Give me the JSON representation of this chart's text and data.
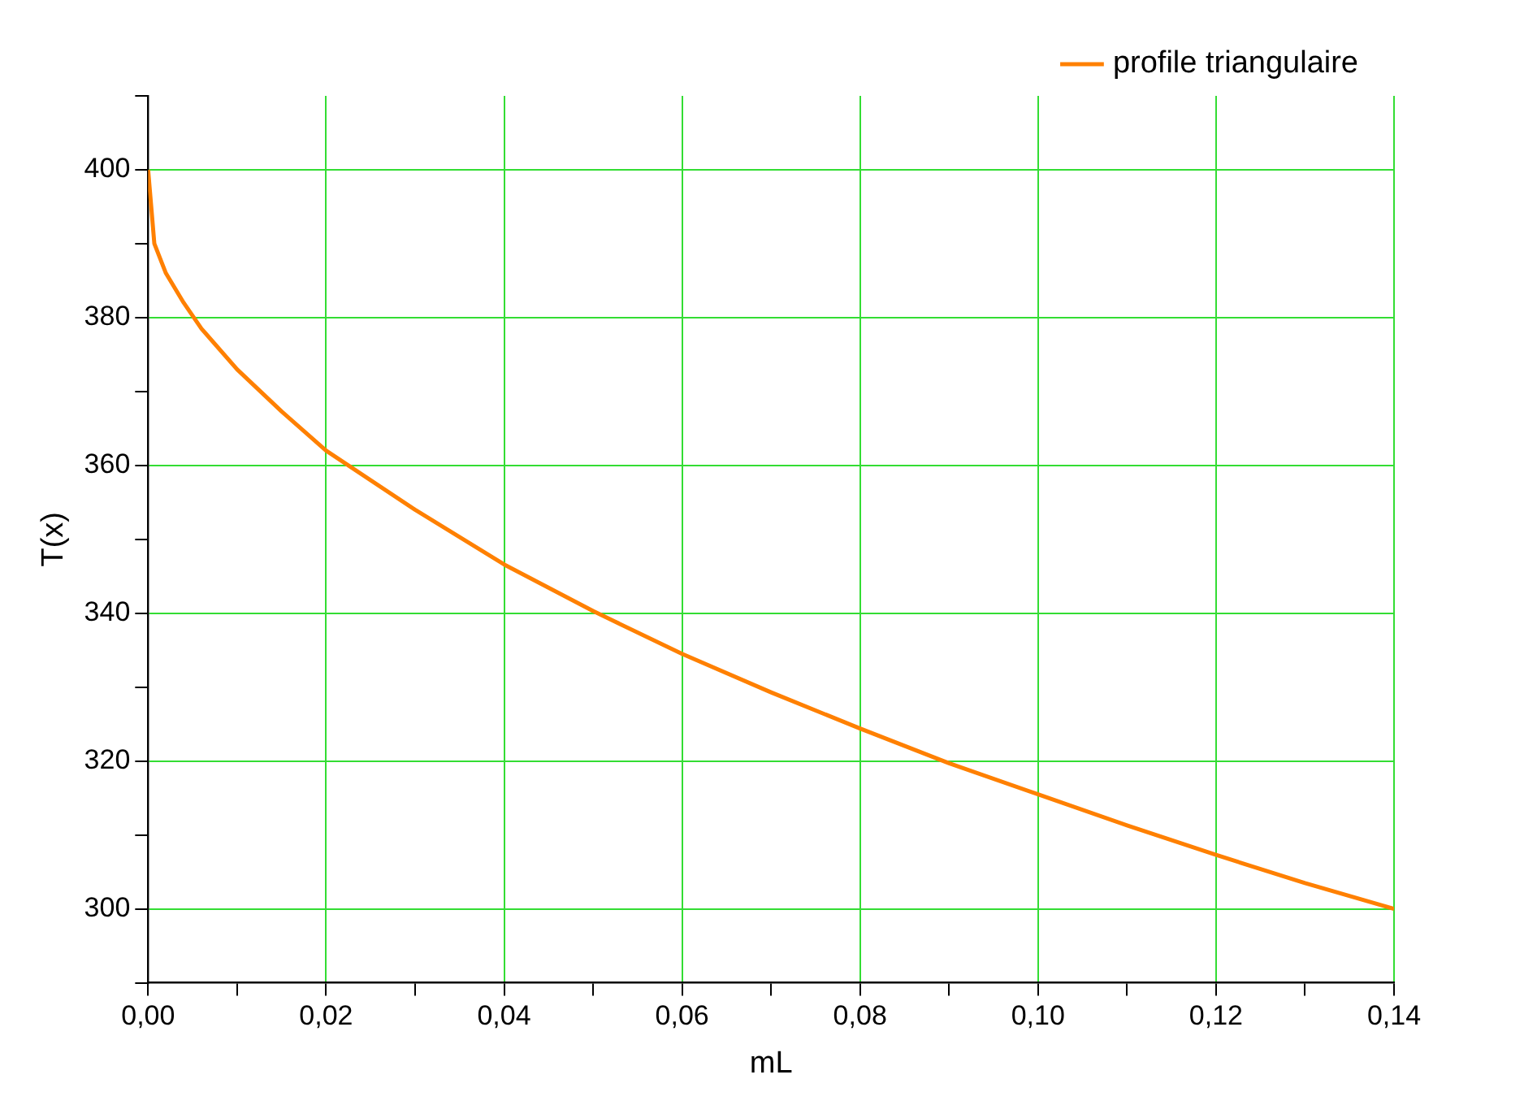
{
  "chart_data": {
    "type": "line",
    "xlabel": "mL",
    "ylabel": "T(x)",
    "xlim": [
      0,
      0.14
    ],
    "ylim": [
      290,
      410
    ],
    "xticks": [
      {
        "value": 0,
        "label": "0,00"
      },
      {
        "value": 0.01,
        "label": null
      },
      {
        "value": 0.02,
        "label": "0,02"
      },
      {
        "value": 0.03,
        "label": null
      },
      {
        "value": 0.04,
        "label": "0,04"
      },
      {
        "value": 0.05,
        "label": null
      },
      {
        "value": 0.06,
        "label": "0,06"
      },
      {
        "value": 0.07,
        "label": null
      },
      {
        "value": 0.08,
        "label": "0,08"
      },
      {
        "value": 0.09,
        "label": null
      },
      {
        "value": 0.1,
        "label": "0,10"
      },
      {
        "value": 0.11,
        "label": null
      },
      {
        "value": 0.12,
        "label": "0,12"
      },
      {
        "value": 0.13,
        "label": null
      },
      {
        "value": 0.14,
        "label": "0,14"
      }
    ],
    "yticks": [
      {
        "value": 290,
        "label": null
      },
      300,
      {
        "value": 310,
        "label": null
      },
      320,
      {
        "value": 330,
        "label": null
      },
      340,
      {
        "value": 350,
        "label": null
      },
      360,
      {
        "value": 370,
        "label": null
      },
      380,
      {
        "value": 390,
        "label": null
      },
      400,
      {
        "value": 410,
        "label": null
      }
    ],
    "grid": true,
    "legend": "top right",
    "marker": "none",
    "line_style": "solid",
    "x": [
      0,
      0.0007,
      0.002,
      0.004,
      0.006,
      0.01,
      0.015,
      0.02,
      0.03,
      0.04,
      0.05,
      0.06,
      0.07,
      0.08,
      0.09,
      0.1,
      0.11,
      0.12,
      0.13,
      0.14
    ],
    "series": [
      {
        "name": "profile triangulaire",
        "color": "#ff8000",
        "values": [
          400,
          390,
          386,
          382,
          378.5,
          373,
          367.3,
          362,
          354,
          346.6,
          340.3,
          334.5,
          329.3,
          324.4,
          319.7,
          315.5,
          311.3,
          307.3,
          303.5,
          300
        ]
      }
    ]
  }
}
